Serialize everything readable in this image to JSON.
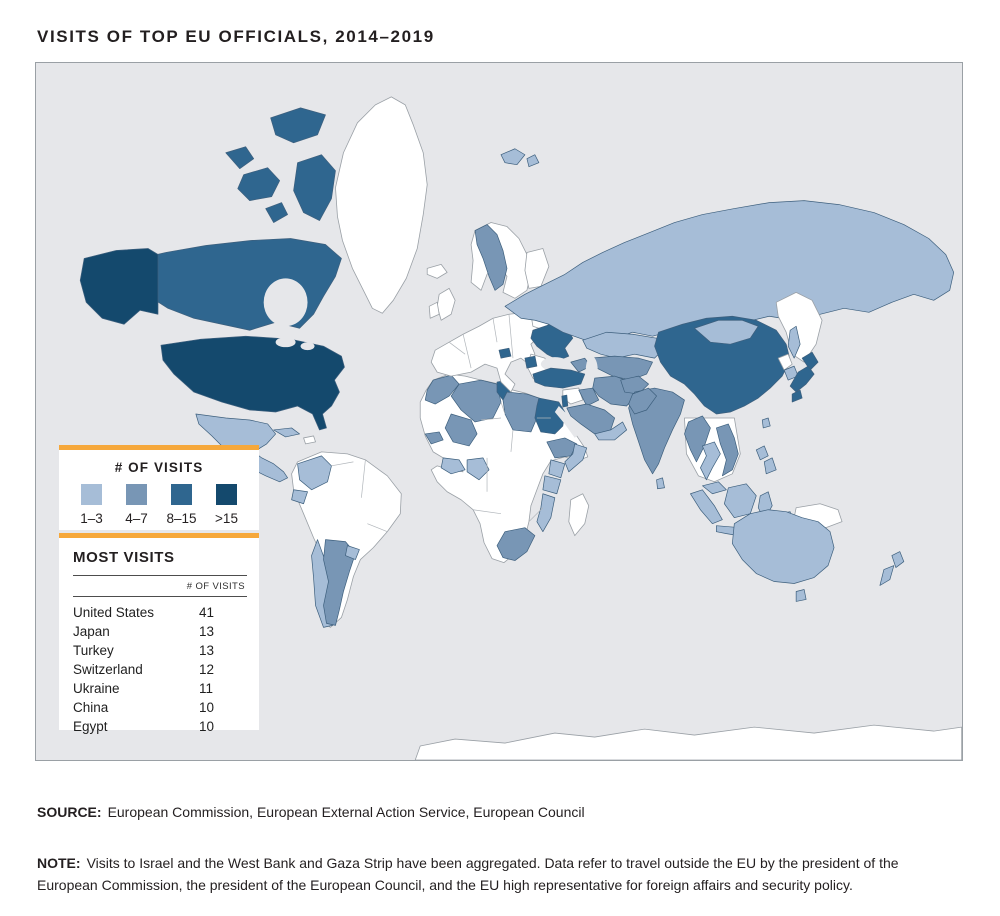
{
  "page": {
    "title": "VISITS OF TOP EU OFFICIALS, 2014–2019"
  },
  "accent_color": "#F6A83B",
  "legend": {
    "title": "# OF VISITS",
    "bins": [
      {
        "key": "1-3",
        "label": "1–3",
        "color": "#A6BDD7"
      },
      {
        "key": "4-7",
        "label": "4–7",
        "color": "#7896B5"
      },
      {
        "key": "8-15",
        "label": "8–15",
        "color": "#2F668F"
      },
      {
        "key": ">15",
        "label": ">15",
        "color": "#14496D"
      }
    ]
  },
  "most_visits": {
    "title": "MOST VISITS",
    "column_header": "# OF VISITS",
    "rows": [
      {
        "country": "United States",
        "visits": 41
      },
      {
        "country": "Japan",
        "visits": 13
      },
      {
        "country": "Turkey",
        "visits": 13
      },
      {
        "country": "Switzerland",
        "visits": 12
      },
      {
        "country": "Ukraine",
        "visits": 11
      },
      {
        "country": "China",
        "visits": 10
      },
      {
        "country": "Egypt",
        "visits": 10
      }
    ]
  },
  "footer": {
    "source_label": "SOURCE:",
    "source_text": "European Commission, European External Action Service, European Council",
    "note_label": "NOTE:",
    "note_text": "Visits to Israel and the West Bank and Gaza Strip have been aggregated. Data refer to travel outside the EU by the president of the European Commission, the president of the European Council, and the EU high representative for foreign affairs and security policy."
  },
  "map": {
    "ocean_color": "#E6E7EA",
    "no_data_color": "#FFFFFF",
    "regions": {
      "canada": "8-15",
      "alaska": ">15",
      "united-states": ">15",
      "mexico-central-america": "1-3",
      "cuba": "1-3",
      "colombia": "1-3",
      "ecuador": "1-3",
      "chile": "1-3",
      "argentina": "4-7",
      "uruguay": "1-3",
      "norway": "4-7",
      "switzerland": "8-15",
      "serbia": "8-15",
      "ukraine": "8-15",
      "turkey": "8-15",
      "russia": "1-3",
      "sakhalin": "1-3",
      "svalbard": "1-3",
      "svalbard-east": "1-3",
      "kazakhstan": "1-3",
      "central-asia": "4-7",
      "caucasus": "4-7",
      "iraq": "4-7",
      "iran": "4-7",
      "saudi-arabia": "4-7",
      "yemen-oman": "1-3",
      "israel": "8-15",
      "afghanistan": "4-7",
      "pakistan": "4-7",
      "india": "4-7",
      "sri-lanka": "1-3",
      "china": "8-15",
      "mongolia": "1-3",
      "south-korea": "1-3",
      "japan": "8-15",
      "taiwan": "1-3",
      "myanmar": "4-7",
      "thailand": "1-3",
      "vietnam": "4-7",
      "malaysia": "1-3",
      "sumatra": "1-3",
      "java": "1-3",
      "borneo": "1-3",
      "sulawesi": "1-3",
      "maluku": "1-3",
      "philippines": "1-3",
      "philippines-south": "1-3",
      "australia": "1-3",
      "tasmania": "1-3",
      "new-zealand-north": "1-3",
      "new-zealand-south": "1-3",
      "morocco": "4-7",
      "algeria": "4-7",
      "tunisia": "8-15",
      "libya": "4-7",
      "egypt": "8-15",
      "mali": "4-7",
      "senegal": "4-7",
      "ghana-ivory-coast": "1-3",
      "nigeria": "1-3",
      "ethiopia": "4-7",
      "somalia": "1-3",
      "kenya": "1-3",
      "tanzania": "1-3",
      "mozambique": "1-3",
      "south-africa": "4-7"
    }
  }
}
